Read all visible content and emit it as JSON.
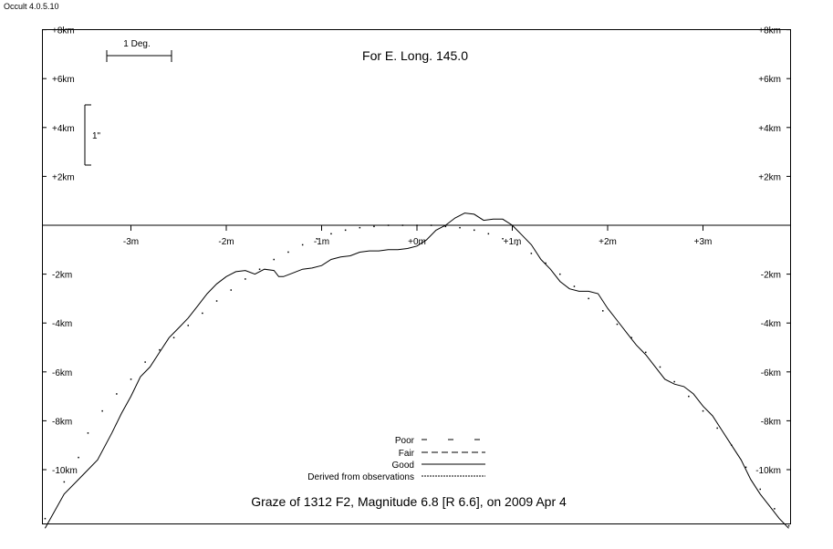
{
  "app": {
    "version_label": "Occult 4.0.5.10"
  },
  "chart_data": {
    "type": "line",
    "title": "For E. Long. 145.0",
    "subtitle": "Graze of  1312 F2,  Magnitude 6.8 [R 6.6],  on 2009 Apr  4",
    "scale_bars": {
      "horizontal_label": "1 Deg.",
      "vertical_label": "1\""
    },
    "x_tick_labels": [
      "-3m",
      "-2m",
      "-1m",
      "+0m",
      "+1m",
      "+2m",
      "+3m"
    ],
    "x_tick_values": [
      -3,
      -2,
      -1,
      0,
      1,
      2,
      3
    ],
    "y_tick_labels": [
      "+8km",
      "+6km",
      "+4km",
      "+2km",
      "-2km",
      "-4km",
      "-6km",
      "-8km",
      "-10km"
    ],
    "y_tick_values": [
      8,
      6,
      4,
      2,
      -2,
      -4,
      -6,
      -8,
      -10
    ],
    "xlim": [
      -3.9,
      3.9
    ],
    "ylim": [
      -12.4,
      8.0
    ],
    "legend": {
      "placement": "bottom-center",
      "entries": [
        {
          "label": "Poor",
          "style": "poor"
        },
        {
          "label": "Fair",
          "style": "fair"
        },
        {
          "label": "Good",
          "style": "good"
        },
        {
          "label": "Derived from observations",
          "style": "derived"
        }
      ]
    },
    "series": [
      {
        "style": "solid",
        "x": [
          -3.9,
          -3.7,
          -3.5,
          -3.35,
          -3.2,
          -3.1,
          -3.0,
          -2.9,
          -2.8,
          -2.7,
          -2.6,
          -2.5,
          -2.4,
          -2.3,
          -2.2,
          -2.1,
          -2.0,
          -1.9,
          -1.8,
          -1.7,
          -1.6,
          -1.5,
          -1.45,
          -1.4,
          -1.3,
          -1.2,
          -1.1,
          -1.0,
          -0.9,
          -0.8,
          -0.7,
          -0.6,
          -0.5,
          -0.4,
          -0.3,
          -0.2,
          -0.1,
          0.0,
          0.1,
          0.2,
          0.3,
          0.4,
          0.5,
          0.6,
          0.7,
          0.8,
          0.9,
          1.0,
          1.1,
          1.2,
          1.3,
          1.4,
          1.5,
          1.6,
          1.7,
          1.8,
          1.9,
          2.0,
          2.1,
          2.2,
          2.3,
          2.4,
          2.5,
          2.6,
          2.7,
          2.8,
          2.9,
          3.0,
          3.1,
          3.2,
          3.3,
          3.4,
          3.5,
          3.6,
          3.7,
          3.8,
          3.9
        ],
        "y": [
          -12.4,
          -11.0,
          -10.2,
          -9.6,
          -8.5,
          -7.7,
          -7.0,
          -6.2,
          -5.8,
          -5.2,
          -4.6,
          -4.2,
          -3.8,
          -3.3,
          -2.8,
          -2.4,
          -2.1,
          -1.9,
          -1.85,
          -2.0,
          -1.8,
          -1.85,
          -2.1,
          -2.1,
          -1.95,
          -1.8,
          -1.75,
          -1.65,
          -1.4,
          -1.3,
          -1.25,
          -1.1,
          -1.05,
          -1.05,
          -1.0,
          -1.0,
          -0.95,
          -0.85,
          -0.6,
          -0.2,
          0.0,
          0.3,
          0.5,
          0.45,
          0.2,
          0.25,
          0.25,
          0.0,
          -0.4,
          -0.8,
          -1.4,
          -1.8,
          -2.3,
          -2.6,
          -2.7,
          -2.7,
          -2.8,
          -3.4,
          -3.9,
          -4.4,
          -4.9,
          -5.3,
          -5.8,
          -6.3,
          -6.5,
          -6.6,
          -6.9,
          -7.4,
          -7.8,
          -8.4,
          -9.0,
          -9.6,
          -10.4,
          -11.0,
          -11.5,
          -12.0,
          -12.4
        ]
      },
      {
        "style": "dotted",
        "x": [
          -3.9,
          -3.7,
          -3.55,
          -3.45,
          -3.3,
          -3.15,
          -3.0,
          -2.85,
          -2.7,
          -2.55,
          -2.4,
          -2.25,
          -2.1,
          -1.95,
          -1.8,
          -1.65,
          -1.5,
          -1.35,
          -1.2,
          -1.05,
          -0.9,
          -0.75,
          -0.6,
          -0.45,
          -0.3,
          -0.15,
          0.0,
          0.15,
          0.3,
          0.45,
          0.6,
          0.75,
          0.9,
          1.05,
          1.2,
          1.35,
          1.5,
          1.65,
          1.8,
          1.95,
          2.1,
          2.25,
          2.4,
          2.55,
          2.7,
          2.85,
          3.0,
          3.15,
          3.3,
          3.45,
          3.6,
          3.75,
          3.9
        ],
        "y": [
          -12.0,
          -10.5,
          -9.5,
          -8.5,
          -7.6,
          -6.9,
          -6.3,
          -5.6,
          -5.1,
          -4.6,
          -4.1,
          -3.6,
          -3.1,
          -2.65,
          -2.2,
          -1.8,
          -1.4,
          -1.1,
          -0.8,
          -0.55,
          -0.35,
          -0.2,
          -0.1,
          -0.05,
          0.0,
          0.0,
          0.0,
          0.0,
          -0.05,
          -0.1,
          -0.2,
          -0.35,
          -0.55,
          -0.8,
          -1.15,
          -1.55,
          -2.0,
          -2.5,
          -3.0,
          -3.5,
          -4.05,
          -4.6,
          -5.2,
          -5.8,
          -6.4,
          -7.0,
          -7.6,
          -8.3,
          -9.0,
          -9.9,
          -10.8,
          -11.6,
          -12.3
        ]
      }
    ]
  }
}
